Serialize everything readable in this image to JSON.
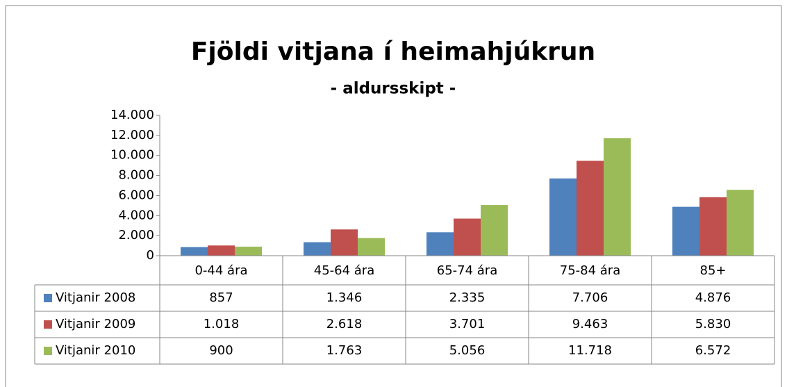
{
  "chart_data": {
    "type": "bar",
    "title": "Fjöldi vitjana í heimahjúkrun",
    "subtitle": "- aldursskipt -",
    "categories": [
      "0-44 ára",
      "45-64 ára",
      "65-74 ára",
      "75-84 ára",
      "85+"
    ],
    "series": [
      {
        "name": "Vitjanir 2008",
        "color": "#4f81bd",
        "values": [
          857,
          1346,
          2335,
          7706,
          4876
        ],
        "value_labels": [
          "857",
          "1.346",
          "2.335",
          "7.706",
          "4.876"
        ]
      },
      {
        "name": "Vitjanir 2009",
        "color": "#c0504d",
        "values": [
          1018,
          2618,
          3701,
          9463,
          5830
        ],
        "value_labels": [
          "1.018",
          "2.618",
          "3.701",
          "9.463",
          "5.830"
        ]
      },
      {
        "name": "Vitjanir 2010",
        "color": "#9bbb59",
        "values": [
          900,
          1763,
          5056,
          11718,
          6572
        ],
        "value_labels": [
          "900",
          "1.763",
          "5.056",
          "11.718",
          "6.572"
        ]
      }
    ],
    "ylim": [
      0,
      14000
    ],
    "yticks": [
      0,
      {
        "value": 2000,
        "label": "2.000"
      },
      {
        "value": 4000,
        "label": "4.000"
      },
      {
        "value": 6000,
        "label": "6.000"
      },
      {
        "value": 8000,
        "label": "8.000"
      },
      {
        "value": 10000,
        "label": "10.000"
      },
      {
        "value": 12000,
        "label": "12.000"
      },
      {
        "value": 14000,
        "label": "14.000"
      }
    ],
    "grid": false
  }
}
